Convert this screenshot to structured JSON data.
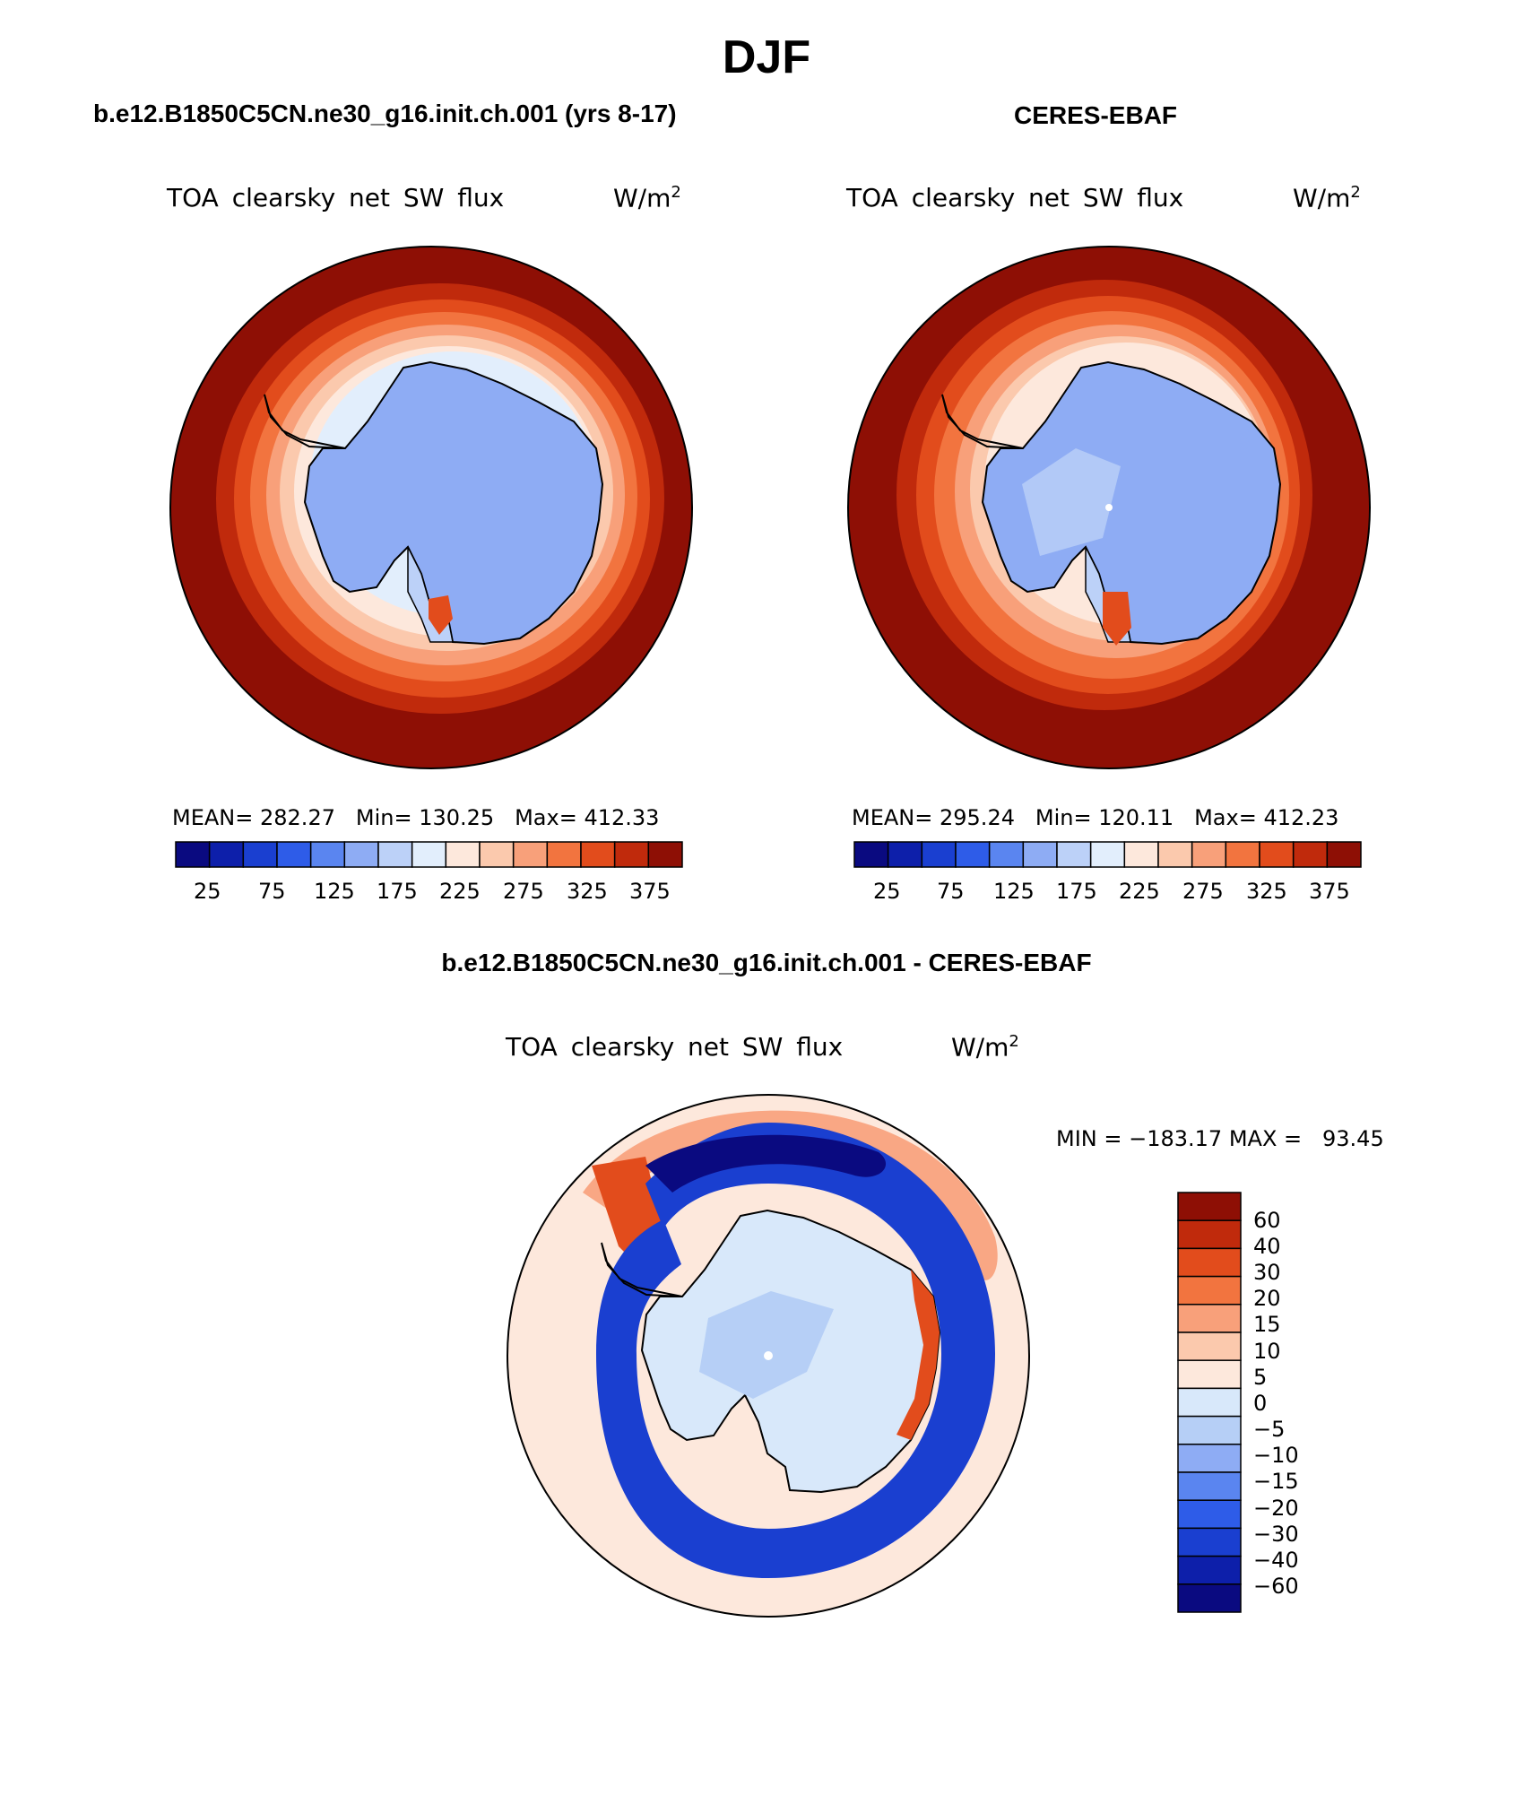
{
  "page": {
    "main_title": "DJF"
  },
  "panels": [
    {
      "id": "model",
      "case_title": "b.e12.B1850C5CN.ne30_g16.init.ch.001 (yrs 8-17)",
      "variable": "TOA clearsky net SW flux",
      "units_base": "W/m",
      "units_sup": "2",
      "stats": {
        "mean_label": "MEAN=",
        "mean": "282.27",
        "min_label": "Min=",
        "min": "130.25",
        "max_label": "Max=",
        "max": "412.33"
      },
      "colorbar_ticks": [
        "25",
        "75",
        "125",
        "175",
        "225",
        "275",
        "325",
        "375"
      ]
    },
    {
      "id": "obs",
      "case_title": "CERES-EBAF",
      "variable": "TOA clearsky net SW flux",
      "units_base": "W/m",
      "units_sup": "2",
      "stats": {
        "mean_label": "MEAN=",
        "mean": "295.24",
        "min_label": "Min=",
        "min": "120.11",
        "max_label": "Max=",
        "max": "412.23"
      },
      "colorbar_ticks": [
        "25",
        "75",
        "125",
        "175",
        "225",
        "275",
        "325",
        "375"
      ]
    }
  ],
  "difference": {
    "case_title": "b.e12.B1850C5CN.ne30_g16.init.ch.001 - CERES-EBAF",
    "variable": "TOA clearsky net SW flux",
    "units_base": "W/m",
    "units_sup": "2",
    "minmax": "MIN = −183.17 MAX =   93.45",
    "colorbar_labels": [
      "60",
      "40",
      "30",
      "20",
      "15",
      "10",
      "5",
      "0",
      "−5",
      "−10",
      "−15",
      "−20",
      "−30",
      "−40",
      "−60"
    ]
  },
  "colors": {
    "abs_scale": [
      "#0a0a80",
      "#0d1faa",
      "#1a3fd0",
      "#2e5ce8",
      "#5a85f0",
      "#8eacf4",
      "#bcd1f8",
      "#e2eefc",
      "#fde8dc",
      "#fbc9ad",
      "#f8a07a",
      "#f2743f",
      "#e24c1c",
      "#c02a0c",
      "#8e0f05"
    ],
    "diff_scale": [
      "#8e0f05",
      "#c02a0c",
      "#e24c1c",
      "#f2743f",
      "#f8a07a",
      "#fbc9ad",
      "#fde8dc",
      "#d8e8fa",
      "#b6cff6",
      "#8eacf4",
      "#5a85f0",
      "#2e5ce8",
      "#1a3fd0",
      "#0d1faa",
      "#0a0a80"
    ],
    "land": "#8eacf4",
    "ocean_far": "#8e0f05",
    "diff_background": "#fde8dc"
  }
}
